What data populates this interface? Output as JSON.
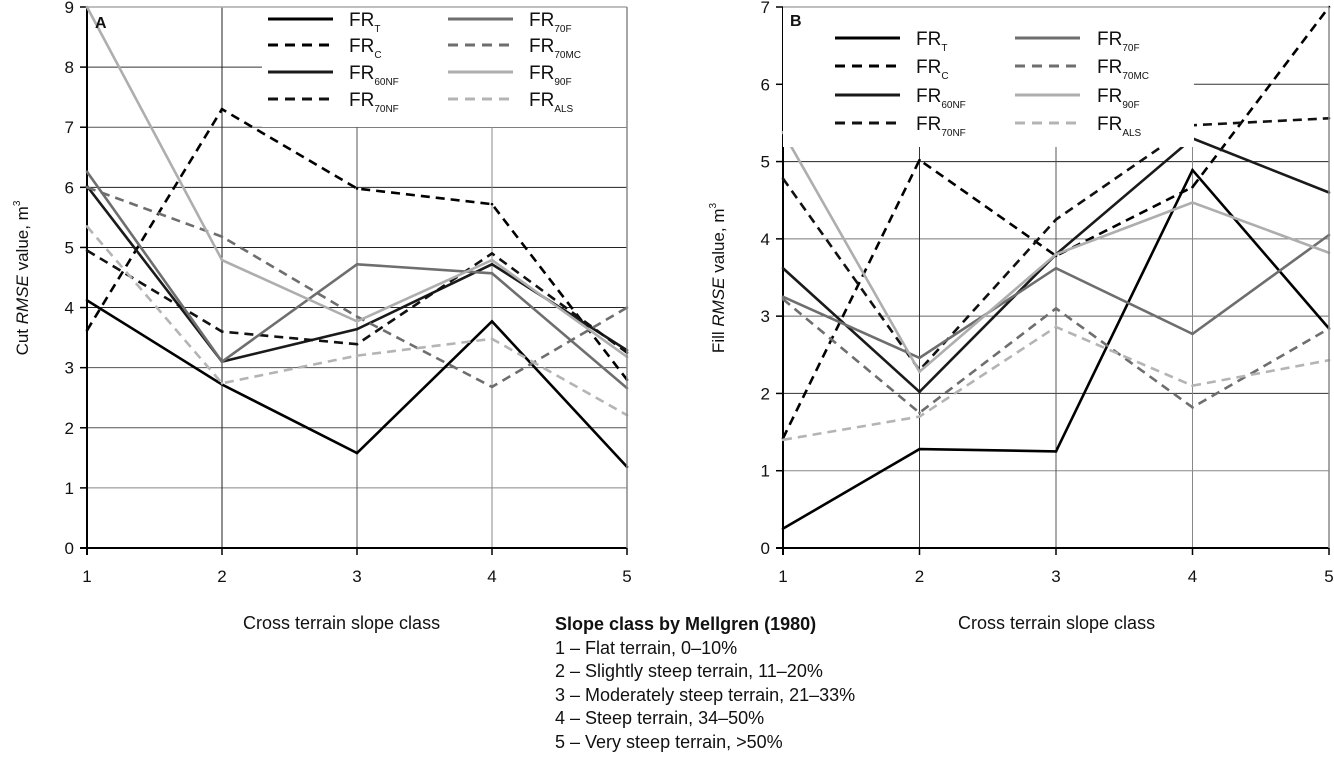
{
  "chart_data": [
    {
      "type": "line",
      "panel_label": "A",
      "ylabel_prefix": "Cut ",
      "ylabel_italic": "RMSE",
      "ylabel_suffix": " value, m",
      "ylabel_sup": "3",
      "xlabel": "Cross terrain slope class",
      "x": [
        1,
        2,
        3,
        4,
        5
      ],
      "xlim": [
        1,
        5
      ],
      "ylim": [
        0,
        9
      ],
      "yticks": [
        0,
        1,
        2,
        3,
        4,
        5,
        6,
        7,
        8,
        9
      ],
      "xticks": [
        1,
        2,
        3,
        4,
        5
      ],
      "grid": true,
      "legend_position": "top-right",
      "series": [
        {
          "key": "T",
          "name_main": "FR",
          "name_sub": "T",
          "values": [
            4.12,
            2.72,
            1.58,
            3.77,
            1.35
          ]
        },
        {
          "key": "C",
          "name_main": "FR",
          "name_sub": "C",
          "values": [
            3.62,
            7.3,
            5.98,
            5.72,
            2.8
          ]
        },
        {
          "key": "60NF",
          "name_main": "FR",
          "name_sub": "60NF",
          "values": [
            6.02,
            3.1,
            3.64,
            4.72,
            3.29
          ]
        },
        {
          "key": "70NF",
          "name_main": "FR",
          "name_sub": "70NF",
          "values": [
            4.95,
            3.6,
            3.39,
            4.9,
            3.25
          ]
        },
        {
          "key": "70F",
          "name_main": "FR",
          "name_sub": "70F",
          "values": [
            6.26,
            3.1,
            4.72,
            4.57,
            2.66
          ]
        },
        {
          "key": "70MC",
          "name_main": "FR",
          "name_sub": "70MC",
          "values": [
            6.0,
            5.18,
            3.85,
            2.68,
            4.0
          ]
        },
        {
          "key": "90F",
          "name_main": "FR",
          "name_sub": "90F",
          "values": [
            9.0,
            4.79,
            3.77,
            4.79,
            3.18
          ]
        },
        {
          "key": "ALS",
          "name_main": "FR",
          "name_sub": "ALS",
          "values": [
            5.35,
            2.74,
            3.2,
            3.48,
            2.21
          ]
        }
      ]
    },
    {
      "type": "line",
      "panel_label": "B",
      "ylabel_prefix": "Fill ",
      "ylabel_italic": "RMSE",
      "ylabel_suffix": " value, m",
      "ylabel_sup": "3",
      "xlabel": "Cross terrain slope class",
      "x": [
        1,
        2,
        3,
        4,
        5
      ],
      "xlim": [
        1,
        5
      ],
      "ylim": [
        0,
        7
      ],
      "yticks": [
        0,
        1,
        2,
        3,
        4,
        5,
        6,
        7
      ],
      "xticks": [
        1,
        2,
        3,
        4,
        5
      ],
      "grid": true,
      "legend_position": "top-left",
      "series": [
        {
          "key": "T",
          "name_main": "FR",
          "name_sub": "T",
          "values": [
            0.25,
            1.28,
            1.25,
            4.89,
            2.84
          ]
        },
        {
          "key": "C",
          "name_main": "FR",
          "name_sub": "C",
          "values": [
            1.42,
            5.02,
            3.78,
            4.67,
            7.0
          ]
        },
        {
          "key": "60NF",
          "name_main": "FR",
          "name_sub": "60NF",
          "values": [
            3.62,
            2.02,
            3.8,
            5.3,
            4.6
          ]
        },
        {
          "key": "70NF",
          "name_main": "FR",
          "name_sub": "70NF",
          "values": [
            4.78,
            2.3,
            4.25,
            5.47,
            5.56
          ]
        },
        {
          "key": "70F",
          "name_main": "FR",
          "name_sub": "70F",
          "values": [
            3.25,
            2.46,
            3.62,
            2.77,
            4.05
          ]
        },
        {
          "key": "70MC",
          "name_main": "FR",
          "name_sub": "70MC",
          "values": [
            3.22,
            1.75,
            3.1,
            1.82,
            2.84
          ]
        },
        {
          "key": "90F",
          "name_main": "FR",
          "name_sub": "90F",
          "values": [
            5.38,
            2.28,
            3.8,
            4.47,
            3.82
          ]
        },
        {
          "key": "ALS",
          "name_main": "FR",
          "name_sub": "ALS",
          "values": [
            1.4,
            1.7,
            2.86,
            2.1,
            2.43
          ]
        }
      ]
    }
  ],
  "series_styles": {
    "T": {
      "color": "#000000",
      "dash": "none"
    },
    "C": {
      "color": "#000000",
      "dash": "dashed"
    },
    "60NF": {
      "color": "#1a1a1a",
      "dash": "none"
    },
    "70NF": {
      "color": "#111111",
      "dash": "dashed"
    },
    "70F": {
      "color": "#6e6e6e",
      "dash": "none"
    },
    "70MC": {
      "color": "#6e6e6e",
      "dash": "dashed"
    },
    "90F": {
      "color": "#aeaeae",
      "dash": "none"
    },
    "ALS": {
      "color": "#b4b4b4",
      "dash": "dashed"
    }
  },
  "notes": {
    "title": "Slope class by Mellgren (1980)",
    "items": [
      "1 – Flat terrain, 0–10%",
      "2 – Slightly steep terrain, 11–20%",
      "3 – Moderately steep terrain, 21–33%",
      "4 – Steep terrain, 34–50%",
      "5 – Very steep terrain, >50%"
    ]
  }
}
